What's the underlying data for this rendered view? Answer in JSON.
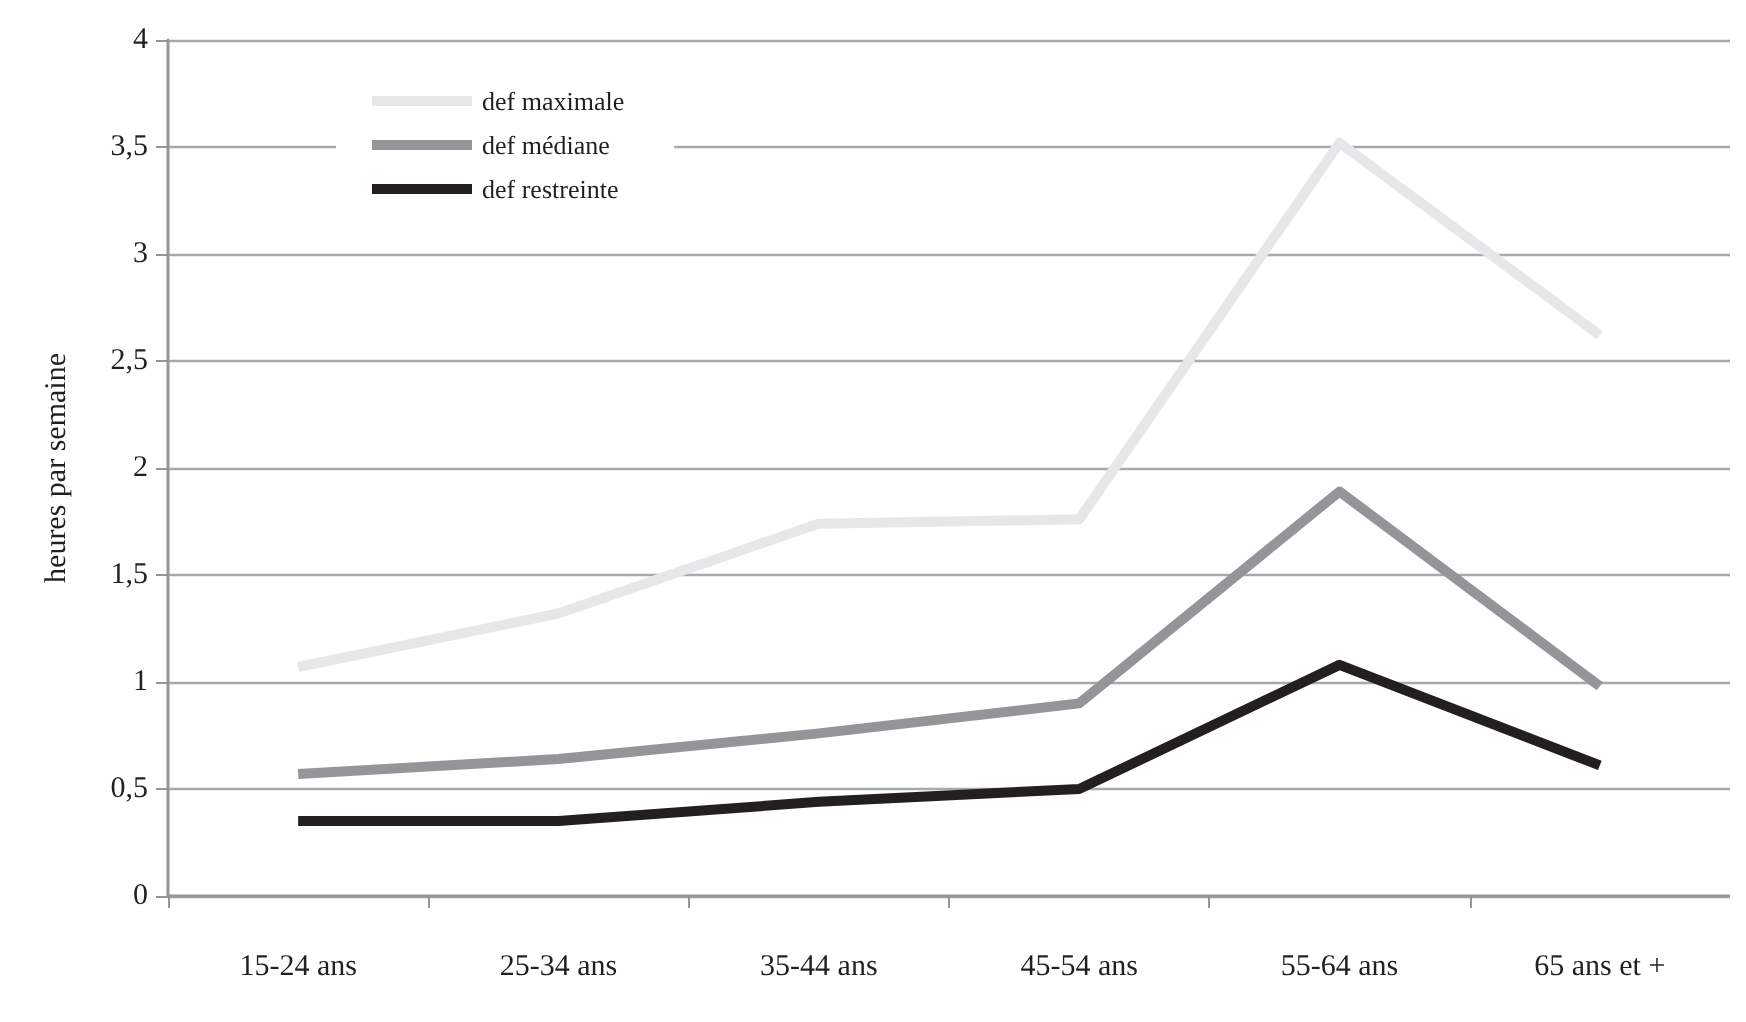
{
  "chart_data": {
    "type": "line",
    "ylabel": "heures par semaine",
    "categories": [
      "15-24 ans",
      "25-34 ans",
      "35-44 ans",
      "45-54 ans",
      "55-64 ans",
      "65 ans et +"
    ],
    "series": [
      {
        "name": "def maximale",
        "color": "#e6e7e8",
        "values": [
          1.07,
          1.32,
          1.74,
          1.76,
          3.52,
          2.62
        ]
      },
      {
        "name": "def médiane",
        "color": "#939598",
        "values": [
          0.57,
          0.64,
          0.76,
          0.9,
          1.89,
          0.98
        ]
      },
      {
        "name": "def restreinte",
        "color": "#231f20",
        "values": [
          0.35,
          0.35,
          0.44,
          0.5,
          1.08,
          0.61
        ]
      }
    ],
    "ylim": [
      0,
      4
    ],
    "yticks": [
      {
        "value": 0,
        "label": "0"
      },
      {
        "value": 0.5,
        "label": "0,5"
      },
      {
        "value": 1,
        "label": "1"
      },
      {
        "value": 1.5,
        "label": "1,5"
      },
      {
        "value": 2,
        "label": "2"
      },
      {
        "value": 2.5,
        "label": "2,5"
      },
      {
        "value": 3,
        "label": "3"
      },
      {
        "value": 3.5,
        "label": "3,5"
      },
      {
        "value": 4,
        "label": "4"
      }
    ],
    "grid": "y",
    "legend": "top left",
    "marker": "none",
    "line_style": "solid"
  }
}
